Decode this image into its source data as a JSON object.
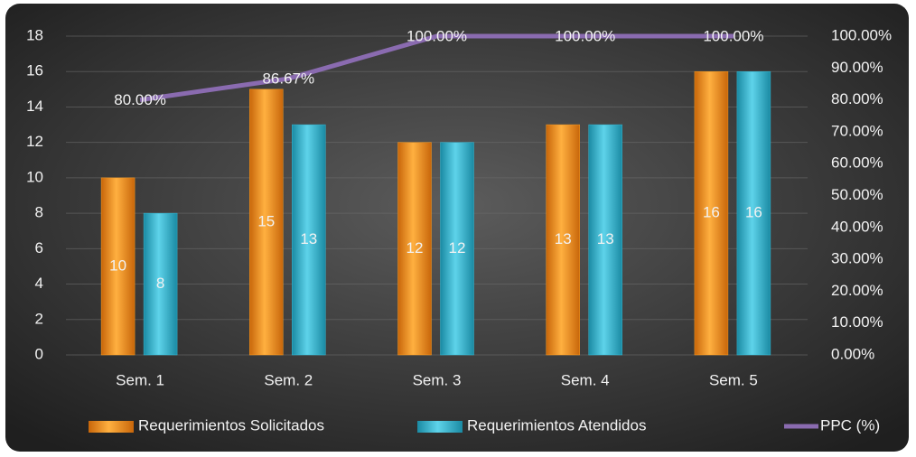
{
  "chart_data": {
    "type": "bar",
    "categories": [
      "Sem. 1",
      "Sem. 2",
      "Sem. 3",
      "Sem. 4",
      "Sem. 5"
    ],
    "series": [
      {
        "name": "Requerimientos Solicitados",
        "color": "#f39a22",
        "values": [
          10,
          15,
          12,
          13,
          16
        ]
      },
      {
        "name": "Requerimientos Atendidos",
        "color": "#35b9d3",
        "values": [
          8,
          13,
          12,
          13,
          16
        ]
      },
      {
        "name": "PPC (%)",
        "type": "line",
        "axis": "y2",
        "color": "#8a6bb0",
        "values": [
          80,
          86.67,
          100,
          100,
          100
        ],
        "value_labels": [
          "80.00%",
          "86.67%",
          "100.00%",
          "100.00%",
          "100.00%"
        ]
      }
    ],
    "ylim": [
      0,
      18
    ],
    "yticks": [
      0,
      2,
      4,
      6,
      8,
      10,
      12,
      14,
      16,
      18
    ],
    "y2lim": [
      0,
      100
    ],
    "y2ticks": [
      {
        "value": 0,
        "label": "0.00%"
      },
      {
        "value": 10,
        "label": "10.00%"
      },
      {
        "value": 20,
        "label": "20.00%"
      },
      {
        "value": 30,
        "label": "30.00%"
      },
      {
        "value": 40,
        "label": "40.00%"
      },
      {
        "value": 50,
        "label": "50.00%"
      },
      {
        "value": 60,
        "label": "60.00%"
      },
      {
        "value": 70,
        "label": "70.00%"
      },
      {
        "value": 80,
        "label": "80.00%"
      },
      {
        "value": 90,
        "label": "90.00%"
      },
      {
        "value": 100,
        "label": "100.00%"
      }
    ],
    "grid": true,
    "legend": "bottom"
  }
}
